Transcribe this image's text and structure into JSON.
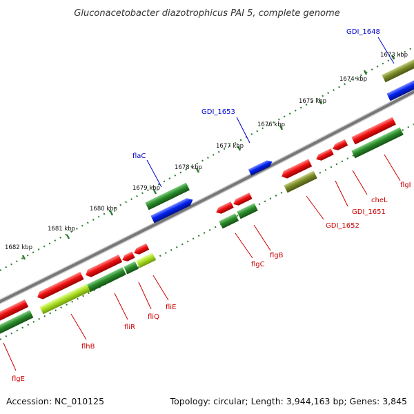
{
  "title": "Gluconacetobacter diazotrophicus PAI 5, complete genome",
  "footer": {
    "accession": "Accession: NC_010125",
    "summary": "Topology: circular; Length: 3,944,163 bp; Genes: 3,845"
  },
  "colors": {
    "backbone": "#7a7a7a",
    "ruler": "#2f7d2f",
    "label_forward": "#0000cc",
    "label_reverse": "#cc0000",
    "cds_forward": "#0022ee",
    "cds_reverse": "#ee1111",
    "cds_green": "#2a8a2a",
    "cds_olive": "#7a8a2a",
    "cds_lime": "#aadd22"
  },
  "ticks": [
    {
      "label": "1673 kbp"
    },
    {
      "label": "1674 kbp"
    },
    {
      "label": "1675 kbp"
    },
    {
      "label": "1676 kbp"
    },
    {
      "label": "1677 kbp"
    },
    {
      "label": "1678 kbp"
    },
    {
      "label": "1679 kbp"
    },
    {
      "label": "1680 kbp"
    },
    {
      "label": "1681 kbp"
    },
    {
      "label": "1682 kbp"
    }
  ],
  "gene_labels": [
    {
      "id": "GDI_1648",
      "label": "GDI_1648",
      "strand": "forward"
    },
    {
      "id": "GDI_1653",
      "label": "GDI_1653",
      "strand": "forward"
    },
    {
      "id": "flaC",
      "label": "flaC",
      "strand": "forward"
    },
    {
      "id": "flgI",
      "label": "flgI",
      "strand": "reverse"
    },
    {
      "id": "cheL",
      "label": "cheL",
      "strand": "reverse"
    },
    {
      "id": "GDI_1651",
      "label": "GDI_1651",
      "strand": "reverse"
    },
    {
      "id": "GDI_1652",
      "label": "GDI_1652",
      "strand": "reverse"
    },
    {
      "id": "flgB",
      "label": "flgB",
      "strand": "reverse"
    },
    {
      "id": "flgC",
      "label": "flgC",
      "strand": "reverse"
    },
    {
      "id": "fliE",
      "label": "fliE",
      "strand": "reverse"
    },
    {
      "id": "fliQ",
      "label": "fliQ",
      "strand": "reverse"
    },
    {
      "id": "fliR",
      "label": "fliR",
      "strand": "reverse"
    },
    {
      "id": "flhB",
      "label": "flhB",
      "strand": "reverse"
    },
    {
      "id": "flgE",
      "label": "flgE",
      "strand": "reverse"
    }
  ]
}
